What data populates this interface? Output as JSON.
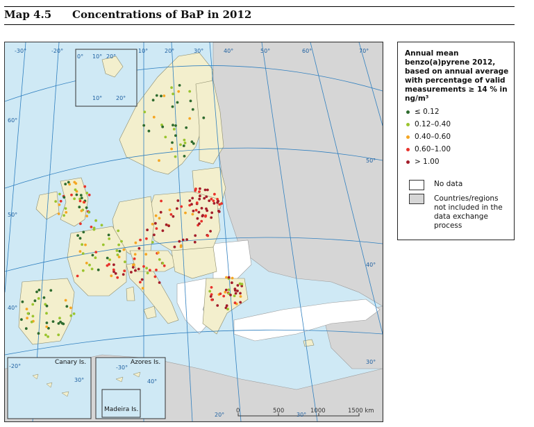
{
  "header": {
    "map_number": "Map 4.5",
    "title": "Concentrations of BaP in 2012"
  },
  "legend": {
    "title": "Annual mean benzo(a)pyrene 2012, based on annual average with percentage of valid measurements ≥ 14 % in ng/m³",
    "classes": [
      {
        "label": "≤ 0.12",
        "color": "#2e6b2e"
      },
      {
        "label": "0.12–0.40",
        "color": "#9ac42e"
      },
      {
        "label": "0.40–0.60",
        "color": "#f5a623"
      },
      {
        "label": "0.60–1.00",
        "color": "#e8322b"
      },
      {
        "label": "> 1.00",
        "color": "#a31d2a"
      }
    ],
    "no_data_label": "No data",
    "not_included_label": "Countries/regions not included in the data exchange process"
  },
  "map": {
    "graticule_labels": {
      "top": [
        "-30°",
        "-20°",
        "10°",
        "20°",
        "30°",
        "10°",
        "20°",
        "30°",
        "40°",
        "50°",
        "60°",
        "70°"
      ],
      "inset_top": [
        "0°",
        "10°",
        "20°",
        "10°",
        "20°"
      ],
      "lat_left": [
        "60°",
        "50°",
        "40°"
      ],
      "lat_right": [
        "50°",
        "40°",
        "30°"
      ],
      "bottom": [
        "20°",
        "30°"
      ]
    },
    "insets": {
      "canary": "Canary Is.",
      "azores": "Azores Is.",
      "madeira": "Madeira Is.",
      "canary_grid": [
        "-20°",
        "30°"
      ],
      "azores_grid": [
        "-30°",
        "40°"
      ]
    },
    "scale": {
      "ticks": [
        "0",
        "500",
        "1000",
        "1500 km"
      ]
    },
    "colors": {
      "sea": "#cfe9f5",
      "reporting": "#f3efcd",
      "no_data": "#ffffff",
      "not_included": "#d6d6d6",
      "graticule": "#2f7fbf"
    }
  }
}
